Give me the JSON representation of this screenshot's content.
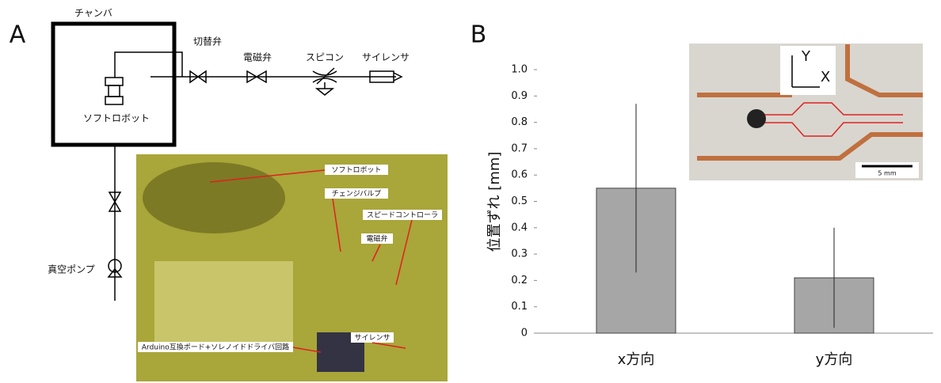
{
  "panels": {
    "a": "A",
    "b": "B"
  },
  "diagram": {
    "chamber": "チャンバ",
    "robot": "ソフトロボット",
    "switch_valve": "切替弁",
    "solenoid_valve": "電磁弁",
    "speed_controller": "スピコン",
    "silencer": "サイレンサ",
    "pump": "真空ポンプ"
  },
  "photo": {
    "robot": "ソフトロボット",
    "change_valve": "チェンジバルブ",
    "speed_controller": "スピードコントローラ",
    "solenoid_valve": "電磁弁",
    "silencer": "サイレンサ",
    "board": "Arduino互換ボード+ソレノイドドライバ回路"
  },
  "inset": {
    "y_axis": "Y",
    "x_axis": "X",
    "scale": "5 mm"
  },
  "chart_data": {
    "type": "bar",
    "ylabel": "位置ずれ [mm]",
    "categories": [
      "x方向",
      "y方向"
    ],
    "values": [
      0.55,
      0.21
    ],
    "errors": [
      0.32,
      0.19
    ],
    "color": "#a6a6a6",
    "ylim": [
      0,
      1
    ],
    "yticks": [
      0,
      0.1,
      0.2,
      0.3,
      0.4,
      0.5,
      0.6,
      0.7,
      0.8,
      0.9,
      {
        "value": 1,
        "label": "1.0"
      }
    ]
  }
}
